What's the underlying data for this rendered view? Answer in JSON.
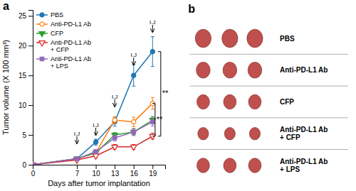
{
  "chart_data": [
    {
      "type": "line",
      "title": "a",
      "x": [
        0,
        7,
        10,
        13,
        16,
        19
      ],
      "series": [
        {
          "name": "PBS",
          "values": [
            0,
            1.0,
            3.8,
            7.2,
            15.0,
            19.0
          ],
          "errors": [
            0,
            0.2,
            0.5,
            0.7,
            1.8,
            2.5
          ],
          "marker": "circle"
        },
        {
          "name": "Anti-PD-L1 Ab",
          "values": [
            0,
            1.0,
            2.0,
            7.5,
            7.2,
            10.3
          ],
          "errors": [
            0,
            0.2,
            0.4,
            0.6,
            0.8,
            1.0
          ],
          "marker": "circle-open"
        },
        {
          "name": "CFP",
          "values": [
            0,
            1.0,
            2.0,
            5.0,
            5.5,
            7.5
          ],
          "errors": [
            0,
            0.2,
            0.3,
            0.4,
            0.5,
            0.6
          ],
          "marker": "triangle-down"
        },
        {
          "name": "Anti-PD-L1 Ab\n+ CFP",
          "values": [
            0,
            0.8,
            1.5,
            3.0,
            3.0,
            4.8
          ],
          "errors": [
            0,
            0.15,
            0.3,
            0.4,
            0.4,
            0.5
          ],
          "marker": "triangle-down-open"
        },
        {
          "name": "Anti-PD-L1 Ab\n+ LPS",
          "values": [
            0,
            1.0,
            2.2,
            4.5,
            5.5,
            7.2
          ],
          "errors": [
            0,
            0.2,
            0.3,
            0.5,
            0.6,
            0.7
          ],
          "marker": "square"
        }
      ],
      "xlabel": "Days after tumor implantation",
      "ylabel": "Tumor volume (X 100 mm³)",
      "xlim": [
        0,
        21
      ],
      "ylim": [
        0,
        26
      ],
      "xticks": [
        0,
        7,
        10,
        13,
        16,
        19
      ],
      "yticks": [
        0,
        5,
        10,
        15,
        20,
        25
      ],
      "legend": "upper left",
      "annotations": [
        {
          "text": "I.J",
          "x": 7,
          "y": 4.8
        },
        {
          "text": "I.J",
          "x": 10,
          "y": 6.2
        },
        {
          "text": "I.J",
          "x": 13,
          "y": 11.0
        },
        {
          "text": "I.J",
          "x": 16,
          "y": 18.0
        },
        {
          "text": "I.J",
          "x": 19,
          "y": 23.5
        }
      ],
      "brackets": [
        {
          "x": 20.3,
          "y": [
            4.8,
            19.0
          ],
          "label": "**"
        },
        {
          "x": 19.4,
          "y": [
            4.8,
            10.3
          ],
          "label": "**"
        }
      ]
    },
    {
      "type": "tumor_rows",
      "title": "b",
      "categories": [
        "PBS",
        "Anti-PD-L1 Ab",
        "CFP",
        "Anti-PD-L1 Ab\n+ CFP",
        "Anti-PD-L1 Ab\n+ LPS"
      ],
      "sizes": [
        1.0,
        0.88,
        0.8,
        0.68,
        0.8
      ],
      "color": "#c0504d"
    }
  ]
}
